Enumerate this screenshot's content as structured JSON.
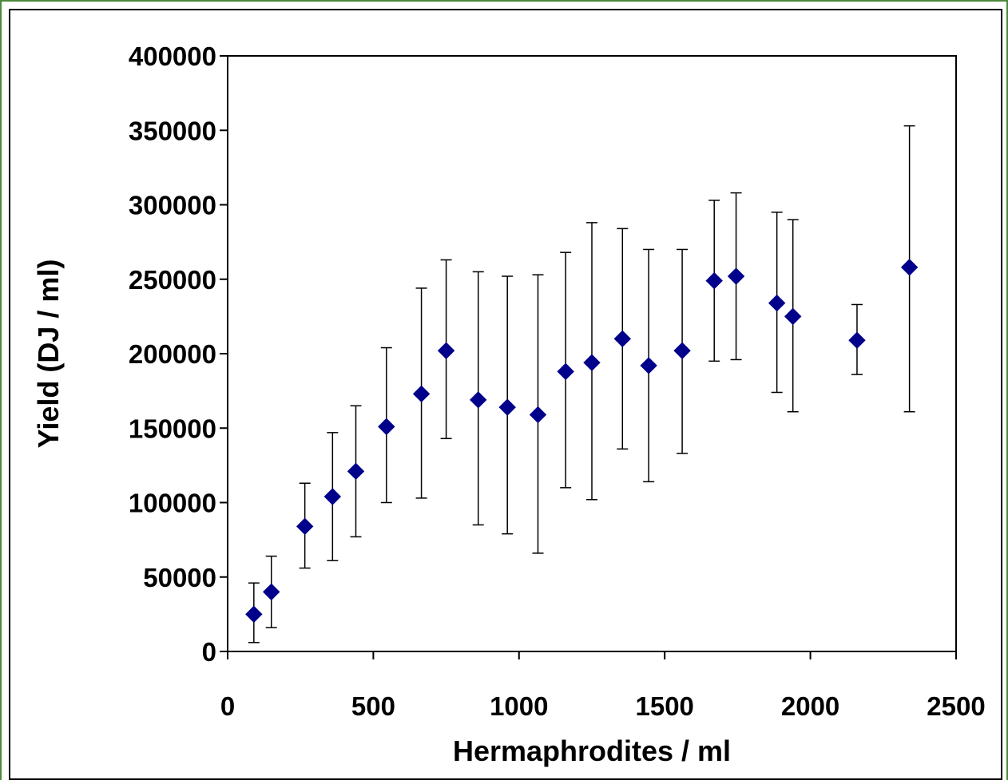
{
  "chart_data": {
    "type": "scatter",
    "title": "",
    "xlabel": "Hermaphrodites / ml",
    "ylabel": "Yield (DJ / ml)",
    "xlim": [
      0,
      2500
    ],
    "ylim": [
      0,
      400000
    ],
    "x_ticks": [
      "0",
      "500",
      "1000",
      "1500",
      "2000",
      "2500"
    ],
    "y_ticks": [
      "0",
      "50000",
      "100000",
      "150000",
      "200000",
      "250000",
      "300000",
      "350000",
      "400000"
    ],
    "grid": false,
    "legend": "none",
    "marker": "diamond",
    "marker_color": "#00008B",
    "errorbar_color": "#000000",
    "points": [
      {
        "x": 90,
        "y": 25000,
        "err_low": 6000,
        "err_high": 46000
      },
      {
        "x": 150,
        "y": 40000,
        "err_low": 16000,
        "err_high": 64000
      },
      {
        "x": 265,
        "y": 84000,
        "err_low": 56000,
        "err_high": 113000
      },
      {
        "x": 360,
        "y": 104000,
        "err_low": 61000,
        "err_high": 147000
      },
      {
        "x": 440,
        "y": 121000,
        "err_low": 77000,
        "err_high": 165000
      },
      {
        "x": 545,
        "y": 151000,
        "err_low": 100000,
        "err_high": 204000
      },
      {
        "x": 665,
        "y": 173000,
        "err_low": 103000,
        "err_high": 244000
      },
      {
        "x": 750,
        "y": 202000,
        "err_low": 143000,
        "err_high": 263000
      },
      {
        "x": 860,
        "y": 169000,
        "err_low": 85000,
        "err_high": 255000
      },
      {
        "x": 960,
        "y": 164000,
        "err_low": 79000,
        "err_high": 252000
      },
      {
        "x": 1065,
        "y": 159000,
        "err_low": 66000,
        "err_high": 253000
      },
      {
        "x": 1160,
        "y": 188000,
        "err_low": 110000,
        "err_high": 268000
      },
      {
        "x": 1250,
        "y": 194000,
        "err_low": 102000,
        "err_high": 288000
      },
      {
        "x": 1355,
        "y": 210000,
        "err_low": 136000,
        "err_high": 284000
      },
      {
        "x": 1445,
        "y": 192000,
        "err_low": 114000,
        "err_high": 270000
      },
      {
        "x": 1560,
        "y": 202000,
        "err_low": 133000,
        "err_high": 270000
      },
      {
        "x": 1670,
        "y": 249000,
        "err_low": 195000,
        "err_high": 303000
      },
      {
        "x": 1745,
        "y": 252000,
        "err_low": 196000,
        "err_high": 308000
      },
      {
        "x": 1885,
        "y": 234000,
        "err_low": 174000,
        "err_high": 295000
      },
      {
        "x": 1940,
        "y": 225000,
        "err_low": 161000,
        "err_high": 290000
      },
      {
        "x": 2160,
        "y": 209000,
        "err_low": 186000,
        "err_high": 233000
      },
      {
        "x": 2340,
        "y": 258000,
        "err_low": 161000,
        "err_high": 353000
      }
    ]
  }
}
